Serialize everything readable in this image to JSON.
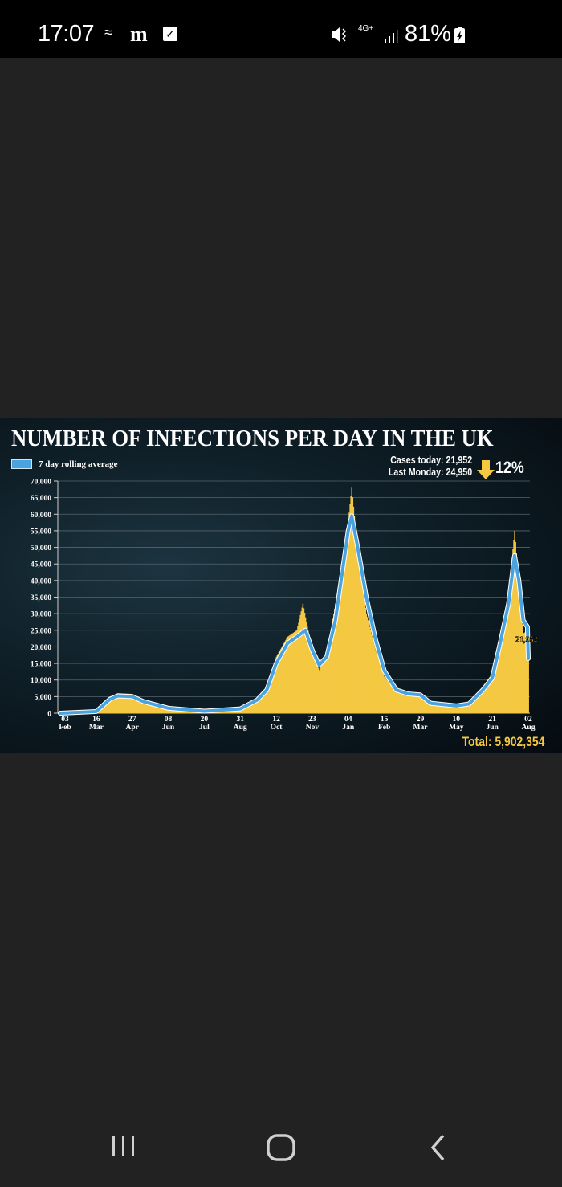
{
  "status_bar": {
    "time": "17:07",
    "battery": "81%",
    "network": "4G+",
    "icons": [
      "wifi-calling-icon",
      "daily-mail-icon",
      "checkbox-icon",
      "vibrate-mute-icon",
      "signal-icon",
      "battery-charging-icon"
    ]
  },
  "nav_bar": {
    "icons": [
      "recent-apps-icon",
      "home-icon",
      "back-icon"
    ]
  },
  "colors": {
    "bars": "#f5c842",
    "line": "#4aa3df",
    "line_outline": "#ffffff",
    "accent_yellow": "#f5c842"
  },
  "chart_data": {
    "type": "bar",
    "title": "NUMBER OF INFECTIONS PER DAY IN THE UK",
    "legend": [
      {
        "label": "7 day rolling average",
        "color": "#4aa3df"
      }
    ],
    "legend_placement": "top-left",
    "cases_today": "Cases today: 21,952",
    "last_monday": "Last Monday: 24,950",
    "change": "12%",
    "change_direction": "down",
    "end_label": "21,952",
    "total": "Total: 5,902,354",
    "grid": true,
    "ylim": [
      0,
      70000
    ],
    "y_ticks": [
      "0",
      "5,000",
      "10,000",
      "15,000",
      "20,000",
      "25,000",
      "30,000",
      "35,000",
      "40,000",
      "45,000",
      "50,000",
      "55,000",
      "60,000",
      "65,000",
      "70,000"
    ],
    "x_ticks": [
      {
        "day": "03",
        "month": "Feb",
        "date": "2020-02-03"
      },
      {
        "day": "16",
        "month": "Mar",
        "date": "2020-03-16"
      },
      {
        "day": "27",
        "month": "Apr",
        "date": "2020-04-27"
      },
      {
        "day": "08",
        "month": "Jun",
        "date": "2020-06-08"
      },
      {
        "day": "20",
        "month": "Jul",
        "date": "2020-07-20"
      },
      {
        "day": "31",
        "month": "Aug",
        "date": "2020-08-31"
      },
      {
        "day": "12",
        "month": "Oct",
        "date": "2020-10-12"
      },
      {
        "day": "23",
        "month": "Nov",
        "date": "2020-11-23"
      },
      {
        "day": "04",
        "month": "Jan",
        "date": "2021-01-04"
      },
      {
        "day": "15",
        "month": "Feb",
        "date": "2021-02-15"
      },
      {
        "day": "29",
        "month": "Mar",
        "date": "2021-03-29"
      },
      {
        "day": "10",
        "month": "May",
        "date": "2021-05-10"
      },
      {
        "day": "21",
        "month": "Jun",
        "date": "2021-06-21"
      },
      {
        "day": "02",
        "month": "Aug",
        "date": "2021-08-02"
      }
    ],
    "series": [
      {
        "name": "7 day rolling average",
        "type": "line",
        "points": [
          [
            "2020-02-03",
            0
          ],
          [
            "2020-03-16",
            500
          ],
          [
            "2020-04-01",
            4200
          ],
          [
            "2020-04-10",
            5200
          ],
          [
            "2020-04-27",
            5000
          ],
          [
            "2020-05-10",
            3500
          ],
          [
            "2020-06-08",
            1500
          ],
          [
            "2020-07-20",
            600
          ],
          [
            "2020-08-31",
            1300
          ],
          [
            "2020-09-20",
            4000
          ],
          [
            "2020-10-01",
            7000
          ],
          [
            "2020-10-12",
            15000
          ],
          [
            "2020-10-25",
            21000
          ],
          [
            "2020-11-05",
            23000
          ],
          [
            "2020-11-15",
            25000
          ],
          [
            "2020-11-23",
            19000
          ],
          [
            "2020-12-01",
            14500
          ],
          [
            "2020-12-10",
            17000
          ],
          [
            "2020-12-20",
            28000
          ],
          [
            "2021-01-04",
            55000
          ],
          [
            "2021-01-08",
            59500
          ],
          [
            "2021-01-15",
            50000
          ],
          [
            "2021-01-25",
            35000
          ],
          [
            "2021-02-05",
            22000
          ],
          [
            "2021-02-15",
            12800
          ],
          [
            "2021-03-01",
            7000
          ],
          [
            "2021-03-15",
            5800
          ],
          [
            "2021-03-29",
            5500
          ],
          [
            "2021-04-10",
            3000
          ],
          [
            "2021-05-10",
            2200
          ],
          [
            "2021-05-25",
            2800
          ],
          [
            "2021-06-10",
            7000
          ],
          [
            "2021-06-21",
            10600
          ],
          [
            "2021-07-01",
            22000
          ],
          [
            "2021-07-10",
            33000
          ],
          [
            "2021-07-17",
            47500
          ],
          [
            "2021-07-22",
            40000
          ],
          [
            "2021-07-27",
            28000
          ],
          [
            "2021-08-01",
            26000
          ],
          [
            "2021-08-02",
            16500
          ]
        ]
      },
      {
        "type": "bar",
        "points": [
          [
            "2020-02-03",
            0
          ],
          [
            "2020-03-16",
            600
          ],
          [
            "2020-04-01",
            5000
          ],
          [
            "2020-04-10",
            6000
          ],
          [
            "2020-04-27",
            5800
          ],
          [
            "2020-05-10",
            3800
          ],
          [
            "2020-06-08",
            1400
          ],
          [
            "2020-07-20",
            700
          ],
          [
            "2020-08-31",
            1500
          ],
          [
            "2020-09-20",
            4500
          ],
          [
            "2020-10-01",
            8000
          ],
          [
            "2020-10-12",
            17000
          ],
          [
            "2020-10-25",
            23000
          ],
          [
            "2020-11-05",
            25000
          ],
          [
            "2020-11-12",
            33000
          ],
          [
            "2020-11-23",
            18000
          ],
          [
            "2020-12-01",
            13000
          ],
          [
            "2020-12-10",
            18000
          ],
          [
            "2020-12-20",
            33000
          ],
          [
            "2021-01-04",
            58000
          ],
          [
            "2021-01-08",
            68000
          ],
          [
            "2021-01-15",
            48000
          ],
          [
            "2021-01-25",
            30000
          ],
          [
            "2021-02-05",
            19000
          ],
          [
            "2021-02-15",
            11000
          ],
          [
            "2021-03-01",
            6500
          ],
          [
            "2021-03-15",
            5500
          ],
          [
            "2021-03-29",
            5000
          ],
          [
            "2021-04-10",
            2500
          ],
          [
            "2021-05-10",
            2300
          ],
          [
            "2021-05-25",
            3000
          ],
          [
            "2021-06-10",
            8000
          ],
          [
            "2021-06-21",
            12000
          ],
          [
            "2021-07-01",
            25000
          ],
          [
            "2021-07-10",
            36000
          ],
          [
            "2021-07-17",
            55000
          ],
          [
            "2021-07-22",
            38000
          ],
          [
            "2021-07-27",
            24000
          ],
          [
            "2021-08-01",
            24900
          ],
          [
            "2021-08-02",
            21952
          ]
        ]
      }
    ]
  }
}
